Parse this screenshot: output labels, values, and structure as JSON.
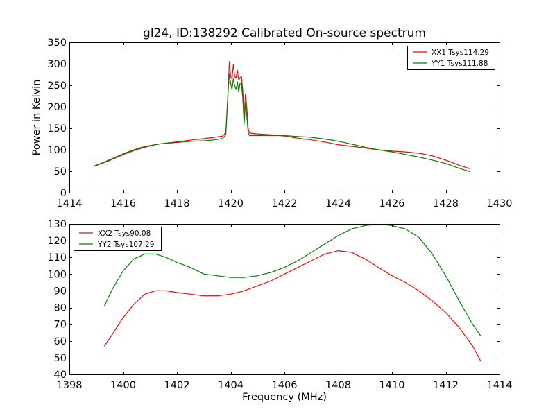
{
  "figure": {
    "title": "gl24, ID:138292 Calibrated On-source spectrum"
  },
  "chart_data": [
    {
      "type": "line",
      "title": "gl24, ID:138292 Calibrated On-source spectrum",
      "xlabel": "",
      "ylabel": "Power in Kelvin",
      "xlim": [
        1414,
        1430
      ],
      "ylim": [
        0,
        350
      ],
      "x_ticks": [
        "1414",
        "1416",
        "1418",
        "1420",
        "1422",
        "1424",
        "1426",
        "1428",
        "1430"
      ],
      "y_ticks": [
        "0",
        "50",
        "100",
        "150",
        "200",
        "250",
        "300",
        "350"
      ],
      "grid": false,
      "legend_position": "top-right",
      "series": [
        {
          "name": "XX1 Tsys114.29",
          "color": "#ff0000",
          "x": [
            1414.9,
            1415.2,
            1415.5,
            1415.8,
            1416.1,
            1416.4,
            1416.7,
            1417.0,
            1417.4,
            1417.8,
            1418.2,
            1418.6,
            1419.0,
            1419.4,
            1419.7,
            1419.82,
            1419.9,
            1419.95,
            1420.0,
            1420.05,
            1420.1,
            1420.15,
            1420.2,
            1420.25,
            1420.3,
            1420.35,
            1420.4,
            1420.45,
            1420.5,
            1420.55,
            1420.6,
            1420.65,
            1420.7,
            1420.8,
            1421.0,
            1421.5,
            1422.0,
            1422.5,
            1423.0,
            1423.5,
            1424.0,
            1424.5,
            1425.0,
            1425.5,
            1426.0,
            1426.5,
            1427.0,
            1427.5,
            1428.0,
            1428.5,
            1428.9
          ],
          "values": [
            61,
            68,
            75,
            83,
            91,
            98,
            104,
            109,
            114,
            117,
            120,
            123,
            126,
            129,
            132,
            140,
            230,
            305,
            270,
            265,
            298,
            270,
            268,
            285,
            262,
            268,
            270,
            240,
            175,
            230,
            200,
            150,
            139,
            138,
            137,
            135,
            132,
            127,
            123,
            118,
            112,
            108,
            104,
            100,
            97,
            95,
            92,
            86,
            76,
            64,
            56
          ]
        },
        {
          "name": "YY1 Tsys111.88",
          "color": "#008000",
          "x": [
            1414.9,
            1415.2,
            1415.5,
            1415.8,
            1416.1,
            1416.4,
            1416.7,
            1417.0,
            1417.4,
            1417.8,
            1418.2,
            1418.6,
            1419.0,
            1419.4,
            1419.7,
            1419.82,
            1419.9,
            1419.95,
            1420.0,
            1420.05,
            1420.1,
            1420.15,
            1420.2,
            1420.25,
            1420.3,
            1420.35,
            1420.4,
            1420.45,
            1420.5,
            1420.55,
            1420.6,
            1420.65,
            1420.7,
            1420.8,
            1421.0,
            1421.5,
            1422.0,
            1422.5,
            1423.0,
            1423.5,
            1424.0,
            1424.5,
            1425.0,
            1425.5,
            1426.0,
            1426.5,
            1427.0,
            1427.5,
            1428.0,
            1428.5,
            1428.9
          ],
          "values": [
            62,
            69,
            77,
            85,
            93,
            100,
            106,
            110,
            114,
            116,
            118,
            120,
            121,
            123,
            126,
            135,
            230,
            275,
            255,
            240,
            265,
            248,
            240,
            258,
            235,
            255,
            256,
            220,
            160,
            210,
            180,
            140,
            133,
            133,
            133,
            133,
            133,
            131,
            129,
            125,
            120,
            113,
            106,
            100,
            95,
            89,
            83,
            76,
            68,
            57,
            49
          ]
        }
      ]
    },
    {
      "type": "line",
      "title": "",
      "xlabel": "Frequency (MHz)",
      "ylabel": "",
      "xlim": [
        1398,
        1414
      ],
      "ylim": [
        40,
        130
      ],
      "x_ticks": [
        "1398",
        "1400",
        "1402",
        "1404",
        "1406",
        "1408",
        "1410",
        "1412",
        "1414"
      ],
      "y_ticks": [
        "40",
        "50",
        "60",
        "70",
        "80",
        "90",
        "100",
        "110",
        "120",
        "130"
      ],
      "grid": false,
      "legend_position": "top-left",
      "series": [
        {
          "name": "XX2 Tsys90.08",
          "color": "#ff0000",
          "x": [
            1399.3,
            1399.6,
            1400.0,
            1400.4,
            1400.8,
            1401.2,
            1401.6,
            1402.0,
            1402.5,
            1403.0,
            1403.5,
            1404.0,
            1404.5,
            1405.0,
            1405.5,
            1406.0,
            1406.5,
            1407.0,
            1407.5,
            1408.0,
            1408.5,
            1409.0,
            1409.5,
            1410.0,
            1410.5,
            1411.0,
            1411.5,
            1412.0,
            1412.5,
            1413.0,
            1413.3
          ],
          "values": [
            57,
            64,
            74,
            82,
            88,
            90,
            90,
            89,
            88,
            87,
            87,
            88,
            90,
            93,
            96,
            100,
            104,
            108,
            112,
            114,
            113,
            109,
            104,
            99,
            95,
            90,
            84,
            77,
            68,
            57,
            48
          ]
        },
        {
          "name": "YY2 Tsys107.29",
          "color": "#008000",
          "x": [
            1399.3,
            1399.6,
            1400.0,
            1400.4,
            1400.8,
            1401.2,
            1401.6,
            1402.0,
            1402.5,
            1403.0,
            1403.5,
            1404.0,
            1404.5,
            1405.0,
            1405.5,
            1406.0,
            1406.5,
            1407.0,
            1407.5,
            1408.0,
            1408.5,
            1409.0,
            1409.5,
            1410.0,
            1410.5,
            1411.0,
            1411.5,
            1412.0,
            1412.5,
            1413.0,
            1413.3
          ],
          "values": [
            81,
            91,
            102,
            109,
            112,
            112,
            110,
            107,
            104,
            100,
            99,
            98,
            98,
            99,
            101,
            104,
            108,
            113,
            118,
            123,
            127,
            129,
            130,
            129,
            127,
            122,
            112,
            99,
            84,
            70,
            63
          ]
        }
      ]
    }
  ]
}
